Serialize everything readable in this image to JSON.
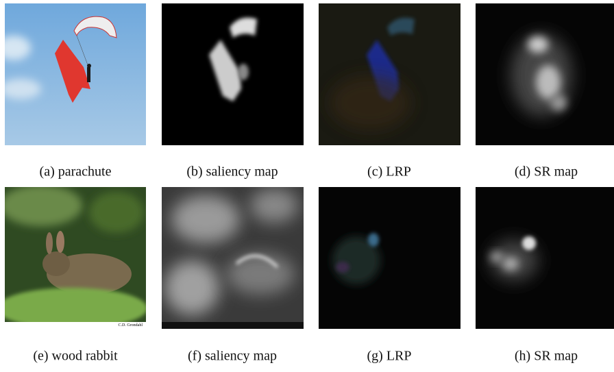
{
  "panels": [
    {
      "caption": "(a) parachute"
    },
    {
      "caption": "(b) saliency map"
    },
    {
      "caption": "(c) LRP"
    },
    {
      "caption": "(d) SR map"
    },
    {
      "caption": "(e) wood rabbit",
      "watermark": "C.D. Grondahl"
    },
    {
      "caption": "(f) saliency map"
    },
    {
      "caption": "(g) LRP"
    },
    {
      "caption": "(h) SR map"
    }
  ]
}
